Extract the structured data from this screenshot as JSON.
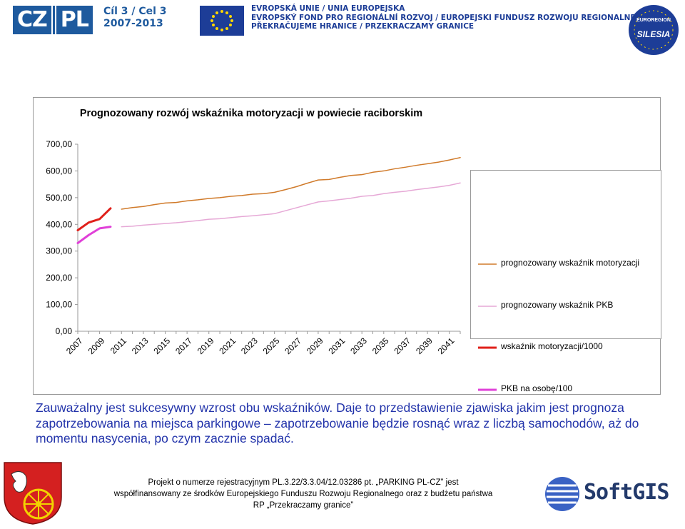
{
  "header": {
    "czpl": [
      "CZ",
      "PL"
    ],
    "goal_lines": [
      "Cíl 3 / Cel 3",
      "2007-2013"
    ],
    "eu_lines": [
      "EVROPSKÁ UNIE / UNIA EUROPEJSKA",
      "EVROPSKÝ FOND PRO REGIONÁLNÍ ROZVOJ / EUROPEJSKI FUNDUSZ ROZWOJU REGIONALNEGO",
      "PŘEKRAČUJEME HRANICE / PRZEKRACZAMY GRANICE"
    ],
    "silesia_top": "EUROREGION",
    "silesia_label": "SILESIA"
  },
  "colors": {
    "pred_motor": "#d07a2a",
    "pred_pkb": "#e6a8d6",
    "motor": "#e0201a",
    "pkb": "#e040d8",
    "text_blue": "#2233aa"
  },
  "chart_data": {
    "type": "line",
    "title": "Prognozowany rozwój wskaźnika motoryzacji w powiecie raciborskim",
    "ylim": [
      0,
      700
    ],
    "yticks": [
      "0,00",
      "100,00",
      "200,00",
      "300,00",
      "400,00",
      "500,00",
      "600,00",
      "700,00"
    ],
    "x_start": 2007,
    "x_end": 2042,
    "xtick_labels": [
      "2007",
      "2009",
      "2011",
      "2013",
      "2015",
      "2017",
      "2019",
      "2021",
      "2023",
      "2025",
      "2027",
      "2029",
      "2031",
      "2033",
      "2035",
      "2037",
      "2039",
      "2041"
    ],
    "legend": [
      "prognozowany wskaźnik motoryzacji",
      "prognozowany wskaźnik PKB",
      "wskaźnik motoryzacji/1000",
      "PKB na osobę/100"
    ],
    "series": [
      {
        "name": "prognozowany wskaźnik motoryzacji",
        "x": [
          2011,
          2012,
          2013,
          2014,
          2015,
          2016,
          2017,
          2018,
          2019,
          2020,
          2021,
          2022,
          2023,
          2024,
          2025,
          2026,
          2027,
          2028,
          2029,
          2030,
          2031,
          2032,
          2033,
          2034,
          2035,
          2036,
          2037,
          2038,
          2039,
          2040,
          2041,
          2042
        ],
        "values": [
          457,
          463,
          467,
          474,
          480,
          482,
          488,
          492,
          497,
          500,
          505,
          508,
          513,
          515,
          520,
          530,
          541,
          554,
          566,
          568,
          576,
          583,
          586,
          595,
          600,
          608,
          614,
          621,
          627,
          633,
          641,
          650
        ]
      },
      {
        "name": "prognozowany wskaźnik PKB",
        "x": [
          2011,
          2012,
          2013,
          2014,
          2015,
          2016,
          2017,
          2018,
          2019,
          2020,
          2021,
          2022,
          2023,
          2024,
          2025,
          2026,
          2027,
          2028,
          2029,
          2030,
          2031,
          2032,
          2033,
          2034,
          2035,
          2036,
          2037,
          2038,
          2039,
          2040,
          2041,
          2042
        ],
        "values": [
          391,
          393,
          397,
          400,
          403,
          406,
          410,
          414,
          419,
          421,
          425,
          429,
          432,
          436,
          440,
          451,
          462,
          473,
          484,
          488,
          493,
          498,
          505,
          508,
          515,
          520,
          524,
          530,
          535,
          540,
          546,
          555
        ]
      },
      {
        "name": "wskaźnik motoryzacji/1000",
        "x": [
          2007,
          2008,
          2009,
          2010
        ],
        "values": [
          378,
          407,
          420,
          460
        ]
      },
      {
        "name": "PKB na osobę/100",
        "x": [
          2007,
          2008,
          2009,
          2010
        ],
        "values": [
          330,
          360,
          385,
          391
        ]
      }
    ]
  },
  "description": "Zauważalny jest sukcesywny wzrost obu wskaźników. Daje to przedstawienie zjawiska jakim jest prognoza zapotrzebowania na miejsca parkingowe – zapotrzebowanie będzie rosnąć wraz z liczbą samochodów, aż do momentu nasycenia, po czym zacznie spadać.",
  "footer": {
    "line1": "Projekt o numerze rejestracyjnym PL.3.22/3.3.04/12.03286 pt. „PARKING PL-CZ” jest",
    "line2": "współfinansowany ze środków Europejskiego Funduszu Rozwoju Regionalnego oraz z budżetu państwa",
    "line3": "RP „Przekraczamy granice”",
    "softgis": "SoftGIS"
  }
}
